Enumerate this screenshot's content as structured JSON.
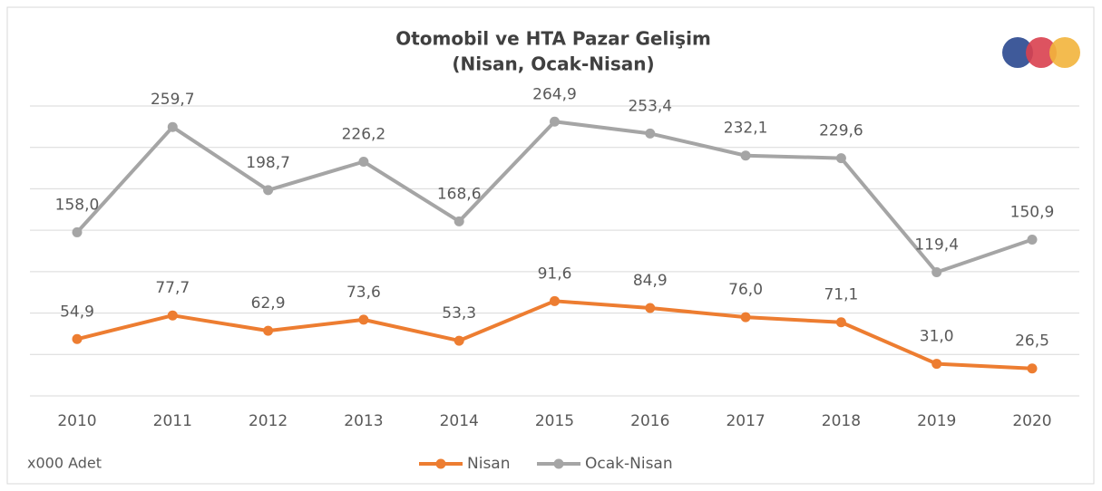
{
  "chart_data": {
    "type": "line",
    "title": "Otomobil ve HTA Pazar Gelişim",
    "subtitle": "(Nisan, Ocak-Nisan)",
    "annotation": "x000 Adet",
    "categories": [
      "2010",
      "2011",
      "2012",
      "2013",
      "2014",
      "2015",
      "2016",
      "2017",
      "2018",
      "2019",
      "2020"
    ],
    "series": [
      {
        "name": "Nisan",
        "color": "#ed7d31",
        "values": [
          54.9,
          77.7,
          62.9,
          73.6,
          53.3,
          91.6,
          84.9,
          76.0,
          71.1,
          31.0,
          26.5
        ],
        "value_labels": [
          "54,9",
          "77,7",
          "62,9",
          "73,6",
          "53,3",
          "91,6",
          "84,9",
          "76,0",
          "71,1",
          "31,0",
          "26,5"
        ]
      },
      {
        "name": "Ocak-Nisan",
        "color": "#a5a5a5",
        "values": [
          158.0,
          259.7,
          198.7,
          226.2,
          168.6,
          264.9,
          253.4,
          232.1,
          229.6,
          119.4,
          150.9
        ],
        "value_labels": [
          "158,0",
          "259,7",
          "198,7",
          "226,2",
          "168,6",
          "264,9",
          "253,4",
          "232,1",
          "229,6",
          "119,4",
          "150,9"
        ]
      }
    ],
    "ylim": [
      0,
      280
    ],
    "yticks": [
      0,
      40,
      80,
      120,
      160,
      200,
      240,
      280
    ],
    "grid": true,
    "legend": "bottom"
  }
}
